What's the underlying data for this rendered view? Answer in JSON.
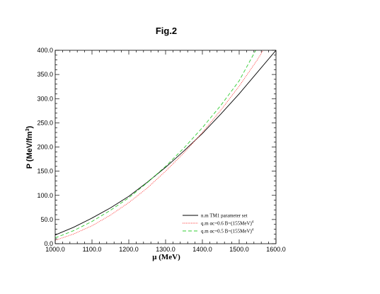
{
  "chart_data": {
    "type": "line",
    "title": "Fig.2",
    "xlabel": "μ (MeV)",
    "ylabel_main": "P (MeV/fm",
    "ylabel_sup": "3",
    "ylabel_tail": ")",
    "xlim": [
      1000,
      1600
    ],
    "ylim": [
      0,
      400
    ],
    "xticks": [
      1000,
      1100,
      1200,
      1300,
      1400,
      1500,
      1600
    ],
    "yticks": [
      0,
      50,
      100,
      150,
      200,
      250,
      300,
      350,
      400
    ],
    "xtick_labels": [
      "1000.0",
      "1100.0",
      "1200.0",
      "1300.0",
      "1400.0",
      "1500.0",
      "1600.0"
    ],
    "ytick_labels": [
      "0.0",
      "50.0",
      "100.0",
      "150.0",
      "200.0",
      "250.0",
      "300.0",
      "350.0",
      "400.0"
    ],
    "grid": false,
    "legend_position": "bottom-right",
    "legend": [
      {
        "main": "n.m TM1 parameter set",
        "sup": ""
      },
      {
        "main": "q.m αc=0.6 B=(155MeV)",
        "sup": "4"
      },
      {
        "main": "q.m αc=0.5 B=(155MeV)",
        "sup": "4"
      }
    ],
    "series": [
      {
        "color": "#000000",
        "dash": "",
        "x": [
          1000,
          1050,
          1100,
          1150,
          1200,
          1250,
          1300,
          1350,
          1400,
          1450,
          1500,
          1550,
          1600
        ],
        "y": [
          18,
          34,
          53,
          74,
          98,
          127,
          158,
          192,
          228,
          268,
          310,
          355,
          400
        ]
      },
      {
        "color": "#ff4444",
        "dash": "1.2,1.2",
        "x": [
          1000,
          1050,
          1100,
          1150,
          1200,
          1250,
          1300,
          1350,
          1400,
          1450,
          1500,
          1550,
          1565
        ],
        "y": [
          7,
          20,
          37,
          59,
          85,
          115,
          150,
          188,
          230,
          276,
          326,
          381,
          400
        ]
      },
      {
        "color": "#33cc33",
        "dash": "5,3",
        "x": [
          1000,
          1050,
          1100,
          1150,
          1200,
          1250,
          1300,
          1350,
          1400,
          1450,
          1500,
          1545
        ],
        "y": [
          12,
          27,
          46,
          69,
          95,
          126,
          160,
          198,
          240,
          286,
          337,
          400
        ]
      }
    ]
  }
}
